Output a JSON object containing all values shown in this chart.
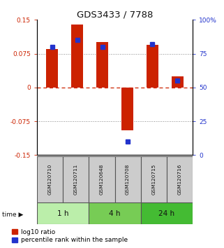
{
  "title": "GDS3433 / 7788",
  "samples": [
    "GSM120710",
    "GSM120711",
    "GSM120648",
    "GSM120708",
    "GSM120715",
    "GSM120716"
  ],
  "log10_ratio": [
    0.085,
    0.14,
    0.1,
    -0.095,
    0.095,
    0.025
  ],
  "percentile_rank": [
    80,
    85,
    80,
    10,
    82,
    55
  ],
  "ylim_left": [
    -0.15,
    0.15
  ],
  "ylim_right": [
    0,
    100
  ],
  "yticks_left": [
    -0.15,
    -0.075,
    0,
    0.075,
    0.15
  ],
  "yticks_right": [
    0,
    25,
    50,
    75,
    100
  ],
  "ytick_labels_left": [
    "-0.15",
    "-0.075",
    "0",
    "0.075",
    "0.15"
  ],
  "ytick_labels_right": [
    "0",
    "25",
    "50",
    "75",
    "100%"
  ],
  "bar_color_red": "#cc2200",
  "bar_color_blue": "#2233cc",
  "hline_color_red": "#cc2200",
  "grid_color": "#888888",
  "time_groups": [
    {
      "label": "1 h",
      "indices": [
        0,
        1
      ],
      "color": "#bbeeaa"
    },
    {
      "label": "4 h",
      "indices": [
        2,
        3
      ],
      "color": "#77cc55"
    },
    {
      "label": "24 h",
      "indices": [
        4,
        5
      ],
      "color": "#44bb33"
    }
  ],
  "legend_labels": [
    "log10 ratio",
    "percentile rank within the sample"
  ],
  "bar_width": 0.45,
  "blue_marker_size": 5,
  "sample_box_color": "#cccccc",
  "title_fontsize": 9.5,
  "tick_fontsize": 6.5,
  "sample_fontsize": 5.2,
  "time_fontsize": 7.5,
  "legend_fontsize": 6.5
}
